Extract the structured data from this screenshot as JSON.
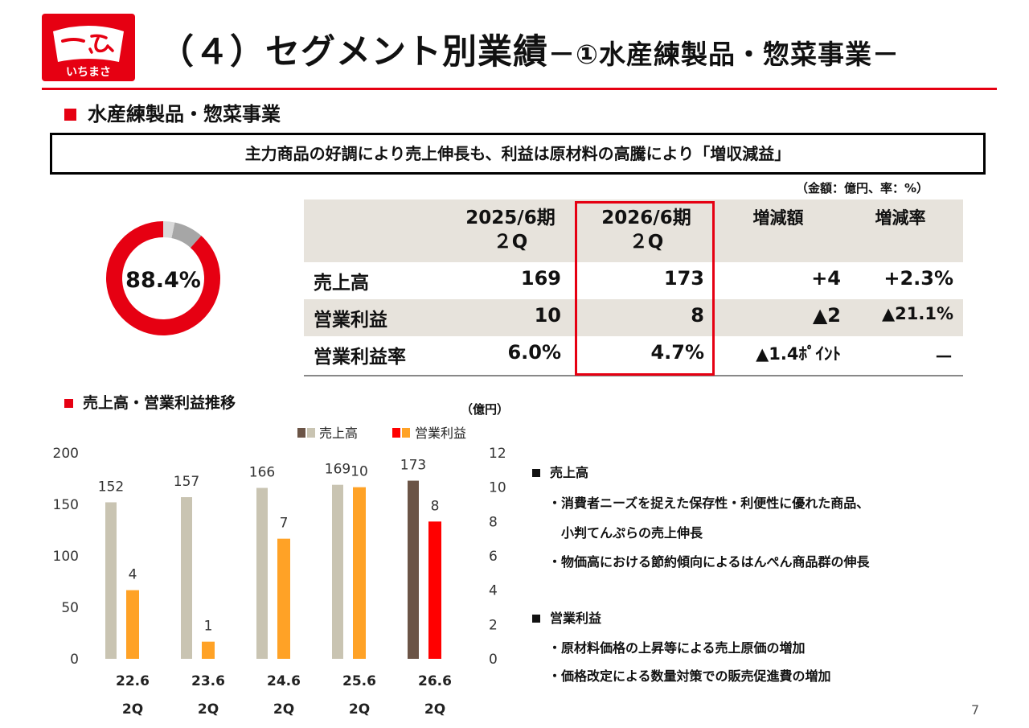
{
  "logo": {
    "text": "いちまさ"
  },
  "title": {
    "main": "（４）セグメント別業績",
    "sub": "－①水産練製品・惣菜事業－"
  },
  "section": {
    "heading": "水産練製品・惣菜事業"
  },
  "summary": "主力商品の好調により売上伸長も、利益は原材料の高騰により「増収減益」",
  "unit_note": "（金額：億円、率：%）",
  "donut": {
    "value": 88.4,
    "label": "88.4%",
    "colors": {
      "main": "#e60012",
      "other1": "#a6a6a6",
      "other2": "#d9d9d9"
    }
  },
  "table": {
    "headers": [
      {
        "line1": "",
        "line2": ""
      },
      {
        "line1": "2025/6期",
        "line2": "２Q"
      },
      {
        "line1": "2026/6期",
        "line2": "２Q"
      },
      {
        "line1": "増減額",
        "line2": ""
      },
      {
        "line1": "増減率",
        "line2": ""
      }
    ],
    "rows": [
      {
        "label": "売上高",
        "prev": "169",
        "curr": "173",
        "diff": "+4",
        "rate": "+2.3%"
      },
      {
        "label": "営業利益",
        "prev": "10",
        "curr": "8",
        "diff": "▲2",
        "rate": "▲21.1%"
      },
      {
        "label": "営業利益率",
        "prev": "6.0%",
        "curr": "4.7%",
        "diff": "▲1.4ﾎﾟｲﾝﾄ",
        "rate": "－"
      }
    ]
  },
  "chart_section": {
    "heading": "売上高・営業利益推移"
  },
  "chart_data": {
    "type": "bar",
    "unit": "（億円）",
    "categories": [
      {
        "line1": "22.6",
        "line2": "2Q"
      },
      {
        "line1": "23.6",
        "line2": "2Q"
      },
      {
        "line1": "24.6",
        "line2": "2Q"
      },
      {
        "line1": "25.6",
        "line2": "2Q"
      },
      {
        "line1": "26.6",
        "line2": "2Q"
      }
    ],
    "series": [
      {
        "name": "売上高",
        "axis": "left",
        "values": [
          152,
          157,
          166,
          169,
          173
        ],
        "labels": [
          "152",
          "157",
          "166",
          "169",
          "173"
        ],
        "color": "#c9c4b2",
        "highlight_color": "#6b5446"
      },
      {
        "name": "営業利益",
        "axis": "right",
        "values": [
          4,
          1,
          7,
          10,
          8
        ],
        "labels": [
          "4",
          "1",
          "7",
          "10",
          "8"
        ],
        "color": "#ffa226",
        "highlight_color": "#ff0000"
      }
    ],
    "left_axis": {
      "min": 0,
      "max": 200,
      "ticks": [
        "0",
        "50",
        "100",
        "150",
        "200"
      ]
    },
    "right_axis": {
      "min": 0,
      "max": 12,
      "ticks": [
        "0",
        "2",
        "4",
        "6",
        "8",
        "10",
        "12"
      ]
    },
    "highlight_index": 4,
    "legend_placement": "top"
  },
  "notes": [
    {
      "heading": "売上高",
      "lines": [
        "・消費者ニーズを捉えた保存性・利便性に優れた商品、",
        "　小判てんぷらの売上伸長",
        "・物価高における節約傾向によるはんぺん商品群の伸長"
      ]
    },
    {
      "heading": "営業利益",
      "lines": [
        "・原材料価格の上昇等による売上原価の増加",
        "・価格改定による数量対策での販売促進費の増加"
      ]
    }
  ],
  "page_number": "7"
}
